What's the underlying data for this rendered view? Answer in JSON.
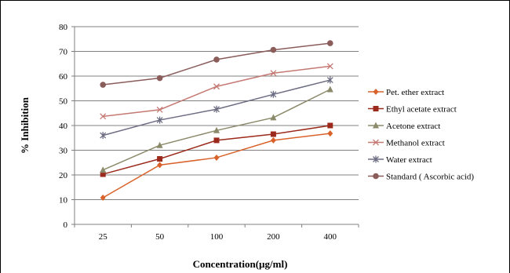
{
  "chart_data": {
    "type": "line",
    "title": "",
    "xlabel": "Concentration(µg/ml)",
    "ylabel": "% Inhibition",
    "categories": [
      "25",
      "50",
      "100",
      "200",
      "400"
    ],
    "ylim": [
      0,
      80
    ],
    "yticks": [
      0,
      10,
      20,
      30,
      40,
      50,
      60,
      70,
      80
    ],
    "grid": "horizontal",
    "legend_position": "right",
    "series": [
      {
        "name": "Pet. ether extract",
        "values": [
          10.8,
          24.0,
          27.0,
          34.0,
          36.8
        ],
        "color": "#d9622b",
        "marker": "diamond"
      },
      {
        "name": "Ethyl acetate extract",
        "values": [
          20.3,
          26.5,
          34.0,
          36.5,
          40.0
        ],
        "color": "#9c2a1c",
        "marker": "square"
      },
      {
        "name": "Acetone extract",
        "values": [
          22.0,
          32.0,
          38.0,
          43.2,
          54.6
        ],
        "color": "#8b8a6a",
        "marker": "triangle"
      },
      {
        "name": "Methanol extract",
        "values": [
          43.7,
          46.4,
          55.8,
          61.2,
          64.0
        ],
        "color": "#c57973",
        "marker": "x"
      },
      {
        "name": "Water extract",
        "values": [
          36.0,
          42.2,
          46.6,
          52.6,
          58.4
        ],
        "color": "#6d6d83",
        "marker": "star"
      },
      {
        "name": "Standard ( Ascorbic acid)",
        "values": [
          56.5,
          59.2,
          66.7,
          70.6,
          73.3
        ],
        "color": "#8a5d5b",
        "marker": "circle"
      }
    ]
  }
}
